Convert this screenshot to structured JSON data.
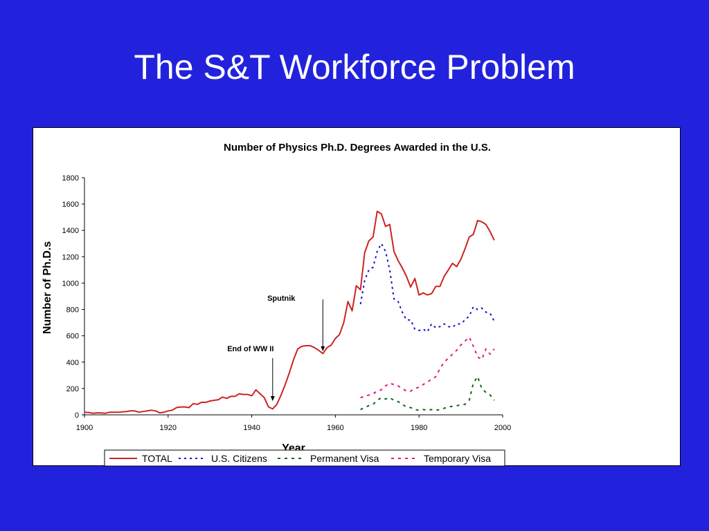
{
  "slide": {
    "title": "The S&T Workforce Problem"
  },
  "chart_data": {
    "type": "line",
    "title": "Number of Physics Ph.D. Degrees Awarded in the U.S.",
    "xlabel": "Year",
    "ylabel": "Number of Ph.D.s",
    "xlim": [
      1900,
      2000
    ],
    "ylim": [
      0,
      1800
    ],
    "x_ticks": [
      "1900",
      "1920",
      "1940",
      "1960",
      "1980",
      "2000"
    ],
    "y_ticks": [
      "0",
      "200",
      "400",
      "600",
      "800",
      "1000",
      "1200",
      "1400",
      "1600",
      "1800"
    ],
    "grid": false,
    "legend_position": "bottom",
    "annotations": [
      {
        "text": "End of WW II",
        "x": 1945,
        "y": 100
      },
      {
        "text": "Sputnik",
        "x": 1957,
        "y": 510
      }
    ],
    "series": [
      {
        "name": "TOTAL",
        "color": "#cc2222",
        "style": "solid",
        "points": [
          [
            1900,
            20
          ],
          [
            1901,
            18
          ],
          [
            1902,
            12
          ],
          [
            1903,
            15
          ],
          [
            1904,
            14
          ],
          [
            1905,
            12
          ],
          [
            1906,
            20
          ],
          [
            1907,
            20
          ],
          [
            1908,
            20
          ],
          [
            1909,
            22
          ],
          [
            1910,
            25
          ],
          [
            1911,
            30
          ],
          [
            1912,
            30
          ],
          [
            1913,
            20
          ],
          [
            1914,
            25
          ],
          [
            1915,
            30
          ],
          [
            1916,
            35
          ],
          [
            1917,
            30
          ],
          [
            1918,
            15
          ],
          [
            1919,
            20
          ],
          [
            1920,
            30
          ],
          [
            1921,
            35
          ],
          [
            1922,
            55
          ],
          [
            1923,
            60
          ],
          [
            1924,
            60
          ],
          [
            1925,
            55
          ],
          [
            1926,
            85
          ],
          [
            1927,
            80
          ],
          [
            1928,
            95
          ],
          [
            1929,
            95
          ],
          [
            1930,
            105
          ],
          [
            1931,
            110
          ],
          [
            1932,
            115
          ],
          [
            1933,
            135
          ],
          [
            1934,
            125
          ],
          [
            1935,
            140
          ],
          [
            1936,
            140
          ],
          [
            1937,
            160
          ],
          [
            1938,
            155
          ],
          [
            1939,
            155
          ],
          [
            1940,
            145
          ],
          [
            1941,
            190
          ],
          [
            1942,
            160
          ],
          [
            1943,
            130
          ],
          [
            1944,
            60
          ],
          [
            1945,
            45
          ],
          [
            1946,
            80
          ],
          [
            1947,
            150
          ],
          [
            1948,
            230
          ],
          [
            1949,
            320
          ],
          [
            1950,
            420
          ],
          [
            1951,
            500
          ],
          [
            1952,
            520
          ],
          [
            1953,
            525
          ],
          [
            1954,
            525
          ],
          [
            1955,
            510
          ],
          [
            1956,
            490
          ],
          [
            1957,
            465
          ],
          [
            1958,
            510
          ],
          [
            1959,
            530
          ],
          [
            1960,
            580
          ],
          [
            1961,
            610
          ],
          [
            1962,
            700
          ],
          [
            1963,
            860
          ],
          [
            1964,
            790
          ],
          [
            1965,
            980
          ],
          [
            1966,
            950
          ],
          [
            1967,
            1230
          ],
          [
            1968,
            1320
          ],
          [
            1969,
            1350
          ],
          [
            1970,
            1545
          ],
          [
            1971,
            1525
          ],
          [
            1972,
            1430
          ],
          [
            1973,
            1445
          ],
          [
            1974,
            1240
          ],
          [
            1975,
            1170
          ],
          [
            1976,
            1115
          ],
          [
            1977,
            1050
          ],
          [
            1978,
            970
          ],
          [
            1979,
            1035
          ],
          [
            1980,
            910
          ],
          [
            1981,
            925
          ],
          [
            1982,
            910
          ],
          [
            1983,
            920
          ],
          [
            1984,
            975
          ],
          [
            1985,
            975
          ],
          [
            1986,
            1050
          ],
          [
            1987,
            1100
          ],
          [
            1988,
            1150
          ],
          [
            1989,
            1125
          ],
          [
            1990,
            1180
          ],
          [
            1991,
            1260
          ],
          [
            1992,
            1350
          ],
          [
            1993,
            1370
          ],
          [
            1994,
            1475
          ],
          [
            1995,
            1465
          ],
          [
            1996,
            1445
          ],
          [
            1997,
            1390
          ],
          [
            1998,
            1325
          ]
        ]
      },
      {
        "name": "U.S. Citizens",
        "color": "#1111cc",
        "style": "dotted",
        "points": [
          [
            1966,
            840
          ],
          [
            1967,
            1020
          ],
          [
            1968,
            1100
          ],
          [
            1969,
            1120
          ],
          [
            1970,
            1240
          ],
          [
            1971,
            1300
          ],
          [
            1972,
            1240
          ],
          [
            1973,
            1100
          ],
          [
            1974,
            880
          ],
          [
            1975,
            860
          ],
          [
            1976,
            780
          ],
          [
            1977,
            720
          ],
          [
            1978,
            720
          ],
          [
            1979,
            650
          ],
          [
            1980,
            640
          ],
          [
            1981,
            650
          ],
          [
            1982,
            630
          ],
          [
            1983,
            690
          ],
          [
            1984,
            660
          ],
          [
            1985,
            670
          ],
          [
            1986,
            690
          ],
          [
            1987,
            670
          ],
          [
            1988,
            665
          ],
          [
            1989,
            690
          ],
          [
            1990,
            690
          ],
          [
            1991,
            720
          ],
          [
            1992,
            750
          ],
          [
            1993,
            820
          ],
          [
            1994,
            800
          ],
          [
            1995,
            810
          ],
          [
            1996,
            780
          ],
          [
            1997,
            770
          ],
          [
            1998,
            710
          ]
        ]
      },
      {
        "name": "Permanent Visa",
        "color": "#116611",
        "style": "dashed",
        "points": [
          [
            1966,
            40
          ],
          [
            1967,
            55
          ],
          [
            1968,
            70
          ],
          [
            1969,
            80
          ],
          [
            1970,
            110
          ],
          [
            1971,
            130
          ],
          [
            1972,
            120
          ],
          [
            1973,
            130
          ],
          [
            1974,
            110
          ],
          [
            1975,
            100
          ],
          [
            1976,
            80
          ],
          [
            1977,
            60
          ],
          [
            1978,
            55
          ],
          [
            1979,
            40
          ],
          [
            1980,
            35
          ],
          [
            1981,
            40
          ],
          [
            1982,
            35
          ],
          [
            1983,
            40
          ],
          [
            1984,
            35
          ],
          [
            1985,
            40
          ],
          [
            1986,
            50
          ],
          [
            1987,
            60
          ],
          [
            1988,
            65
          ],
          [
            1989,
            70
          ],
          [
            1990,
            75
          ],
          [
            1991,
            80
          ],
          [
            1992,
            110
          ],
          [
            1993,
            240
          ],
          [
            1994,
            290
          ],
          [
            1995,
            200
          ],
          [
            1996,
            170
          ],
          [
            1997,
            150
          ],
          [
            1998,
            110
          ]
        ]
      },
      {
        "name": "Temporary Visa",
        "color": "#ee1177",
        "style": "dashed",
        "points": [
          [
            1966,
            130
          ],
          [
            1967,
            140
          ],
          [
            1968,
            150
          ],
          [
            1969,
            160
          ],
          [
            1970,
            180
          ],
          [
            1971,
            190
          ],
          [
            1972,
            220
          ],
          [
            1973,
            240
          ],
          [
            1974,
            230
          ],
          [
            1975,
            220
          ],
          [
            1976,
            200
          ],
          [
            1977,
            180
          ],
          [
            1978,
            180
          ],
          [
            1979,
            200
          ],
          [
            1980,
            210
          ],
          [
            1981,
            230
          ],
          [
            1982,
            250
          ],
          [
            1983,
            270
          ],
          [
            1984,
            290
          ],
          [
            1985,
            350
          ],
          [
            1986,
            400
          ],
          [
            1987,
            430
          ],
          [
            1988,
            460
          ],
          [
            1989,
            490
          ],
          [
            1990,
            530
          ],
          [
            1991,
            560
          ],
          [
            1992,
            590
          ],
          [
            1993,
            520
          ],
          [
            1994,
            440
          ],
          [
            1995,
            420
          ],
          [
            1996,
            500
          ],
          [
            1997,
            460
          ],
          [
            1998,
            500
          ]
        ]
      }
    ]
  }
}
